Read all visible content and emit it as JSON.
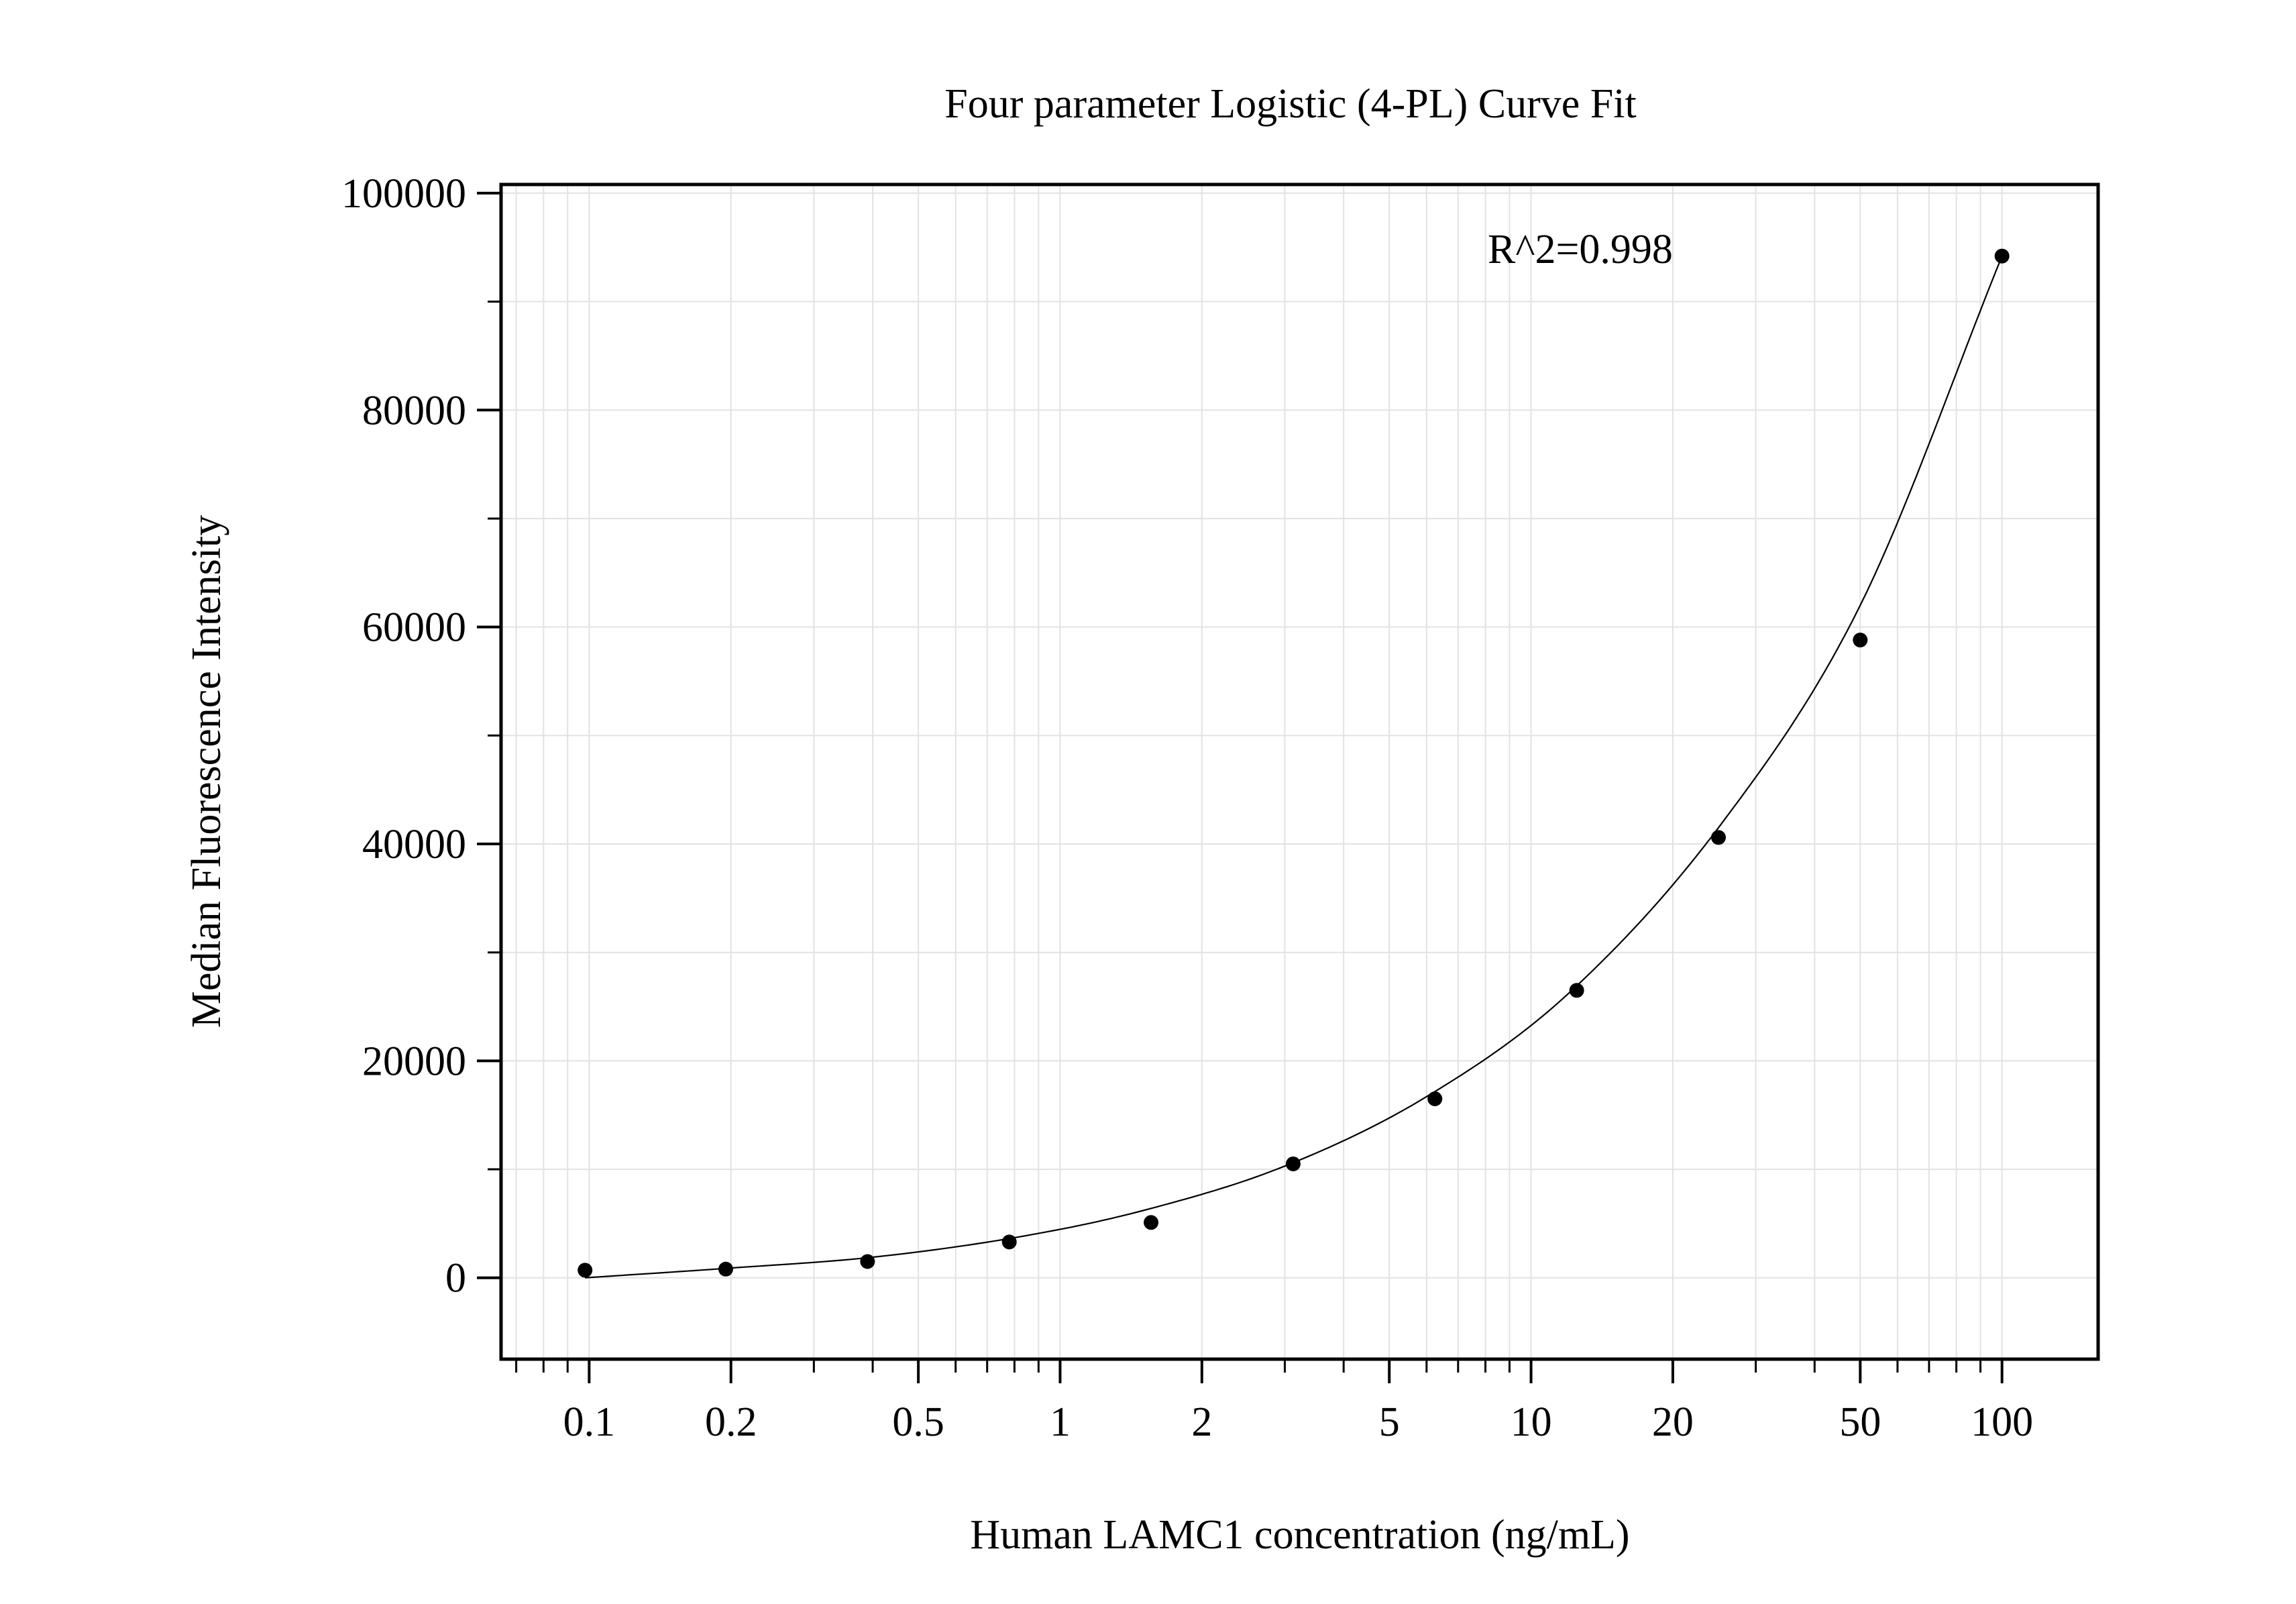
{
  "chart_data": {
    "type": "scatter",
    "title": "Four parameter Logistic (4-PL) Curve Fit",
    "xlabel": "Human LAMC1 concentration (ng/mL)",
    "ylabel": "Median Fluorescence Intensity",
    "xscale": "log",
    "xlim": [
      0.065,
      160
    ],
    "ylim": [
      -7500,
      100800
    ],
    "grid": true,
    "legend": "none",
    "annotation": "R^2=0.998",
    "xticks": [
      {
        "value": 0.1,
        "label": "0.1"
      },
      {
        "value": 0.2,
        "label": "0.2"
      },
      {
        "value": 0.5,
        "label": "0.5"
      },
      {
        "value": 1,
        "label": "1"
      },
      {
        "value": 2,
        "label": "2"
      },
      {
        "value": 5,
        "label": "5"
      },
      {
        "value": 10,
        "label": "10"
      },
      {
        "value": 20,
        "label": "20"
      },
      {
        "value": 50,
        "label": "50"
      },
      {
        "value": 100,
        "label": "100"
      }
    ],
    "yticks": [
      {
        "value": 0,
        "label": "0"
      },
      {
        "value": 20000,
        "label": "20000"
      },
      {
        "value": 40000,
        "label": "40000"
      },
      {
        "value": 60000,
        "label": "60000"
      },
      {
        "value": 80000,
        "label": "80000"
      },
      {
        "value": 100000,
        "label": "100000"
      }
    ],
    "points": {
      "x": [
        0.098,
        0.195,
        0.39,
        0.78,
        1.56,
        3.125,
        6.25,
        12.5,
        25,
        50,
        100
      ],
      "y": [
        700,
        800,
        1500,
        3300,
        5100,
        10500,
        16500,
        26500,
        40600,
        58800,
        94200
      ]
    },
    "fit_curve": {
      "x": [
        0.098,
        0.2,
        0.4,
        0.8,
        1.5,
        3,
        6,
        12,
        25,
        50,
        100
      ],
      "y": [
        0,
        900,
        1900,
        3700,
        6200,
        10300,
        16700,
        26200,
        41500,
        62000,
        94200
      ]
    },
    "colors": {
      "marker": "#000000",
      "line": "#000000",
      "grid": "#e2e2e2",
      "axis": "#000000"
    }
  }
}
